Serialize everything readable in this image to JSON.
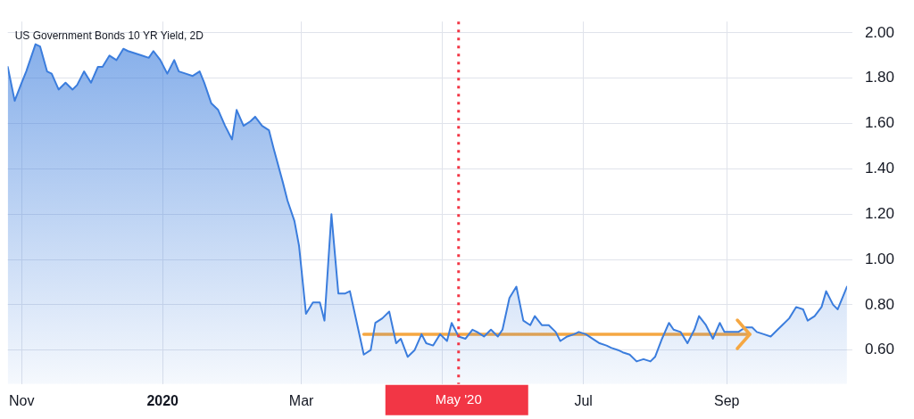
{
  "chart_data": {
    "type": "area",
    "title": "US Government Bonds 10 YR Yield, 2D",
    "x": [
      "2019-10-26",
      "2019-10-29",
      "2019-11-01",
      "2019-11-03",
      "2019-11-07",
      "2019-11-09",
      "2019-11-12",
      "2019-11-14",
      "2019-11-17",
      "2019-11-20",
      "2019-11-23",
      "2019-11-25",
      "2019-11-28",
      "2019-12-01",
      "2019-12-04",
      "2019-12-06",
      "2019-12-09",
      "2019-12-12",
      "2019-12-15",
      "2019-12-17",
      "2019-12-20",
      "2019-12-23",
      "2019-12-26",
      "2019-12-28",
      "2019-12-31",
      "2020-01-03",
      "2020-01-06",
      "2020-01-08",
      "2020-01-11",
      "2020-01-14",
      "2020-01-17",
      "2020-01-19",
      "2020-01-22",
      "2020-01-25",
      "2020-01-28",
      "2020-01-31",
      "2020-02-02",
      "2020-02-05",
      "2020-02-08",
      "2020-02-10",
      "2020-02-13",
      "2020-02-16",
      "2020-02-18",
      "2020-02-22",
      "2020-02-24",
      "2020-02-27",
      "2020-02-29",
      "2020-03-03",
      "2020-03-06",
      "2020-03-09",
      "2020-03-11",
      "2020-03-14",
      "2020-03-17",
      "2020-03-20",
      "2020-03-22",
      "2020-03-25",
      "2020-03-28",
      "2020-03-31",
      "2020-04-02",
      "2020-04-05",
      "2020-04-08",
      "2020-04-11",
      "2020-04-13",
      "2020-04-16",
      "2020-04-19",
      "2020-04-22",
      "2020-04-24",
      "2020-04-27",
      "2020-04-30",
      "2020-05-03",
      "2020-05-05",
      "2020-05-08",
      "2020-05-11",
      "2020-05-14",
      "2020-05-16",
      "2020-05-19",
      "2020-05-22",
      "2020-05-25",
      "2020-05-27",
      "2020-05-30",
      "2020-06-02",
      "2020-06-05",
      "2020-06-08",
      "2020-06-10",
      "2020-06-13",
      "2020-06-16",
      "2020-06-19",
      "2020-06-21",
      "2020-06-24",
      "2020-06-27",
      "2020-06-29",
      "2020-07-02",
      "2020-07-08",
      "2020-07-11",
      "2020-07-13",
      "2020-07-16",
      "2020-07-18",
      "2020-07-21",
      "2020-07-24",
      "2020-07-27",
      "2020-07-30",
      "2020-08-01",
      "2020-08-04",
      "2020-08-07",
      "2020-08-09",
      "2020-08-12",
      "2020-08-15",
      "2020-08-18",
      "2020-08-20",
      "2020-08-23",
      "2020-08-26",
      "2020-08-29",
      "2020-08-31",
      "2020-09-03",
      "2020-09-06",
      "2020-09-09",
      "2020-09-12",
      "2020-09-14",
      "2020-09-17",
      "2020-09-20",
      "2020-09-23",
      "2020-09-25",
      "2020-09-28",
      "2020-10-01",
      "2020-10-04",
      "2020-10-06",
      "2020-10-09",
      "2020-10-12",
      "2020-10-14",
      "2020-10-17",
      "2020-10-19",
      "2020-10-23"
    ],
    "series": [
      {
        "color": "#3b7ddd",
        "values": [
          1.85,
          1.7,
          1.78,
          1.83,
          1.95,
          1.94,
          1.83,
          1.82,
          1.75,
          1.78,
          1.75,
          1.77,
          1.83,
          1.78,
          1.85,
          1.85,
          1.9,
          1.88,
          1.93,
          1.92,
          1.91,
          1.9,
          1.89,
          1.92,
          1.88,
          1.82,
          1.88,
          1.83,
          1.82,
          1.81,
          1.83,
          1.78,
          1.69,
          1.66,
          1.59,
          1.53,
          1.66,
          1.59,
          1.61,
          1.63,
          1.59,
          1.57,
          1.49,
          1.34,
          1.26,
          1.17,
          1.06,
          0.76,
          0.81,
          0.81,
          0.73,
          1.2,
          0.85,
          0.85,
          0.86,
          0.72,
          0.58,
          0.6,
          0.72,
          0.74,
          0.77,
          0.63,
          0.65,
          0.57,
          0.6,
          0.67,
          0.63,
          0.62,
          0.67,
          0.64,
          0.72,
          0.66,
          0.65,
          0.69,
          0.68,
          0.66,
          0.69,
          0.66,
          0.69,
          0.83,
          0.88,
          0.73,
          0.71,
          0.75,
          0.71,
          0.71,
          0.68,
          0.64,
          0.66,
          0.67,
          0.68,
          0.67,
          0.63,
          0.62,
          0.61,
          0.6,
          0.59,
          0.58,
          0.55,
          0.56,
          0.55,
          0.57,
          0.65,
          0.72,
          0.69,
          0.68,
          0.63,
          0.69,
          0.75,
          0.71,
          0.65,
          0.72,
          0.68,
          0.68,
          0.68,
          0.7,
          0.7,
          0.68,
          0.67,
          0.66,
          0.69,
          0.71,
          0.74,
          0.79,
          0.78,
          0.73,
          0.75,
          0.79,
          0.86,
          0.8,
          0.78,
          0.88
        ]
      },
      {
        "type": "line",
        "color": "#f5a742",
        "x": [
          "2020-03-28",
          "2020-09-11"
        ],
        "values": [
          0.67,
          0.67
        ]
      }
    ],
    "xlim": [
      "2019-10-26",
      "2020-10-23"
    ],
    "xticks": [
      {
        "value": "2019-11-01",
        "label": "Nov"
      },
      {
        "value": "2020-01-01",
        "label": "2020"
      },
      {
        "value": "2020-03-01",
        "label": "Mar"
      },
      {
        "value": "2020-05-01",
        "label": null
      },
      {
        "value": "2020-07-01",
        "label": "Jul"
      },
      {
        "value": "2020-09-01",
        "label": "Sep"
      }
    ],
    "ylim": [
      0.45,
      2.05
    ],
    "yticks": [
      {
        "value": 0.6,
        "label": "0.60"
      },
      {
        "value": 0.8,
        "label": "0.80"
      },
      {
        "value": 1.0,
        "label": "1.00"
      },
      {
        "value": 1.2,
        "label": "1.20"
      },
      {
        "value": 1.4,
        "label": "1.40"
      },
      {
        "value": 1.6,
        "label": "1.60"
      },
      {
        "value": 1.8,
        "label": "1.80"
      },
      {
        "value": 2.0,
        "label": "2.00"
      }
    ],
    "ref_lines": [
      {
        "axis": "x",
        "value": "2020-05-08",
        "label": "May '20",
        "color": "#f23645",
        "line_style": "dotted"
      }
    ],
    "grid": true,
    "legend": false
  }
}
